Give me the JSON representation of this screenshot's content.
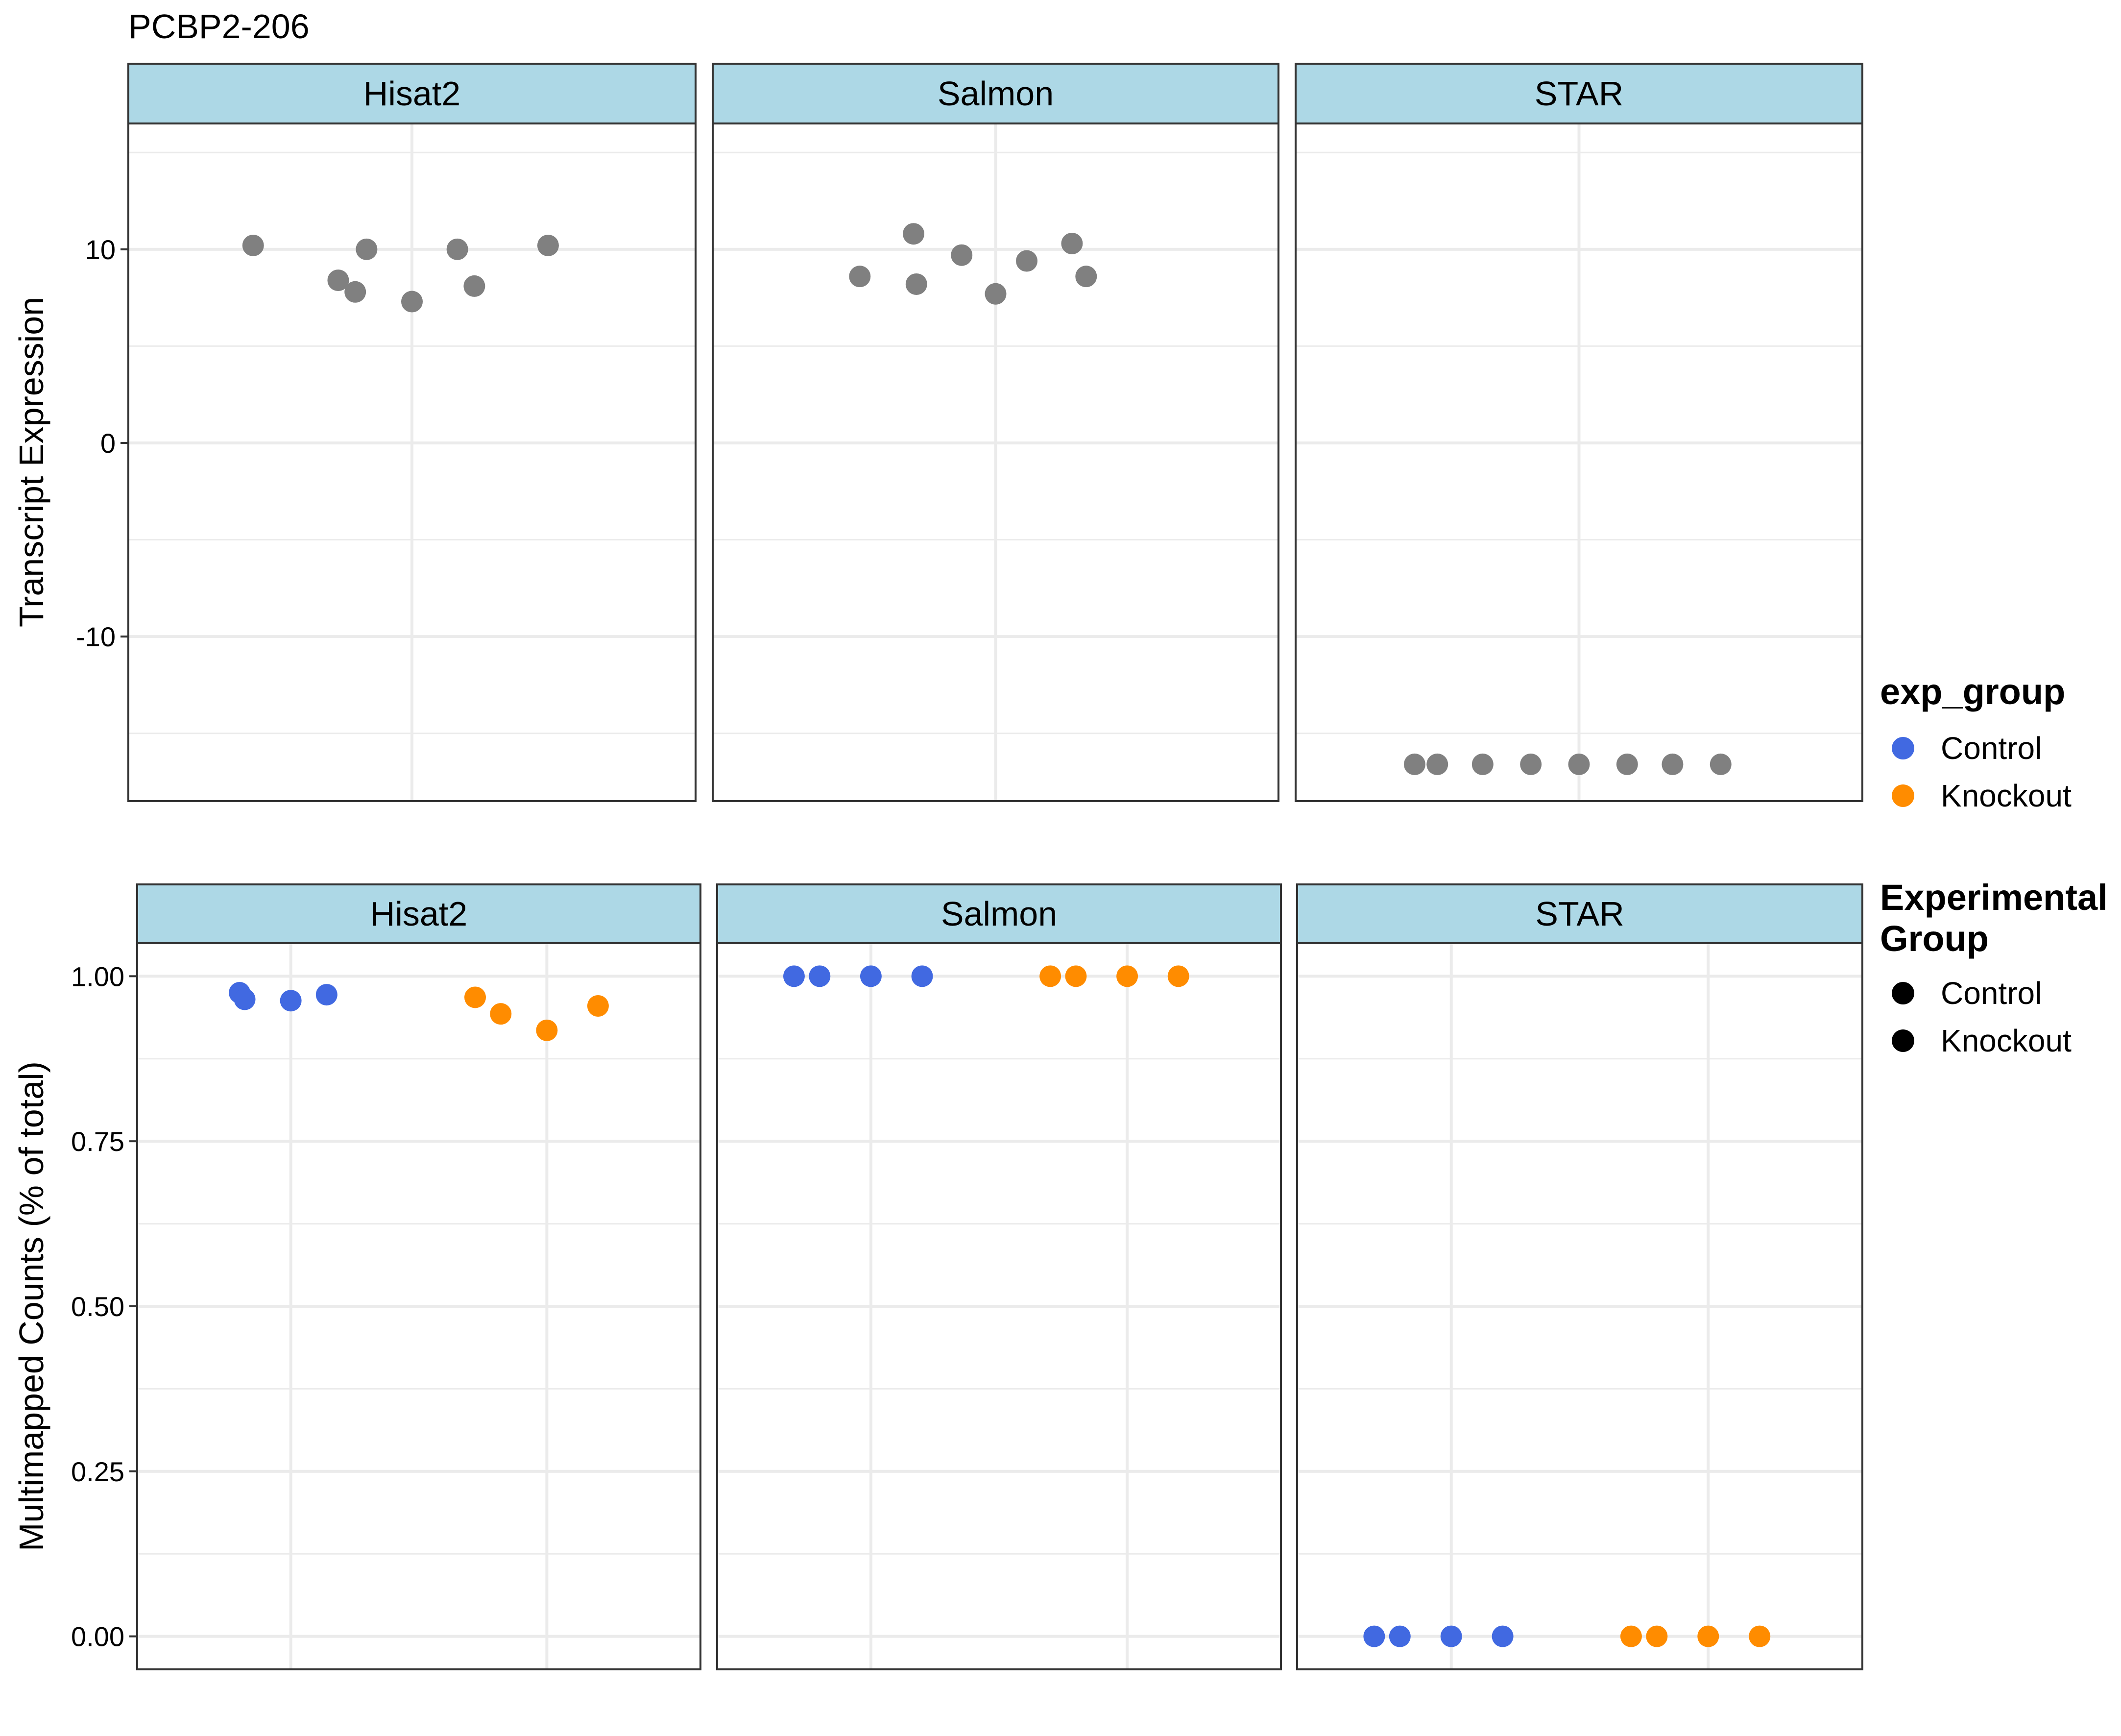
{
  "title": "PCBP2-206",
  "colors": {
    "control": "#4169E1",
    "knockout": "#FF8C00",
    "neutral": "#808080",
    "strip": "#ADD8E6",
    "grid": "#EBEBEB"
  },
  "chart_data": [
    {
      "type": "scatter",
      "ylabel": "Transcript Expression",
      "ylim": [
        -18.5,
        16.5
      ],
      "ytick_values": [
        -10,
        0,
        10
      ],
      "ytick_labels": [
        "-10",
        "0",
        "10"
      ],
      "xlim": [
        -1,
        1
      ],
      "grid": true,
      "facets": [
        {
          "label": "Hisat2",
          "points": [
            {
              "x": -0.56,
              "y": 10.2
            },
            {
              "x": -0.26,
              "y": 8.4
            },
            {
              "x": -0.2,
              "y": 7.8
            },
            {
              "x": -0.16,
              "y": 10.0
            },
            {
              "x": 0.0,
              "y": 7.3
            },
            {
              "x": 0.16,
              "y": 10.0
            },
            {
              "x": 0.22,
              "y": 8.1
            },
            {
              "x": 0.48,
              "y": 10.2
            }
          ]
        },
        {
          "label": "Salmon",
          "points": [
            {
              "x": -0.48,
              "y": 8.6
            },
            {
              "x": -0.29,
              "y": 10.8
            },
            {
              "x": -0.28,
              "y": 8.2
            },
            {
              "x": -0.12,
              "y": 9.7
            },
            {
              "x": 0.0,
              "y": 7.7
            },
            {
              "x": 0.11,
              "y": 9.4
            },
            {
              "x": 0.27,
              "y": 10.3
            },
            {
              "x": 0.32,
              "y": 8.6
            }
          ]
        },
        {
          "label": "STAR",
          "points": [
            {
              "x": -0.58,
              "y": -16.6
            },
            {
              "x": -0.5,
              "y": -16.6
            },
            {
              "x": -0.34,
              "y": -16.6
            },
            {
              "x": -0.17,
              "y": -16.6
            },
            {
              "x": 0.0,
              "y": -16.6
            },
            {
              "x": 0.17,
              "y": -16.6
            },
            {
              "x": 0.33,
              "y": -16.6
            },
            {
              "x": 0.5,
              "y": -16.6
            }
          ]
        }
      ]
    },
    {
      "type": "scatter",
      "ylabel": "Multimapped Counts (% of total)",
      "ylim": [
        -0.05,
        1.05
      ],
      "ytick_values": [
        0,
        0.25,
        0.5,
        0.75,
        1.0
      ],
      "ytick_labels": [
        "0.00",
        "0.25",
        "0.50",
        "0.75",
        "1.00"
      ],
      "xlim": [
        0.4,
        2.6
      ],
      "categories": [
        "Control",
        "Knockout"
      ],
      "grid": true,
      "facets": [
        {
          "label": "Hisat2",
          "series": [
            {
              "group": "control",
              "points": [
                {
                  "x": 0.8,
                  "y": 0.975
                },
                {
                  "x": 0.82,
                  "y": 0.965
                },
                {
                  "x": 1.0,
                  "y": 0.963
                },
                {
                  "x": 1.14,
                  "y": 0.972
                }
              ]
            },
            {
              "group": "knockout",
              "points": [
                {
                  "x": 1.72,
                  "y": 0.968
                },
                {
                  "x": 1.82,
                  "y": 0.943
                },
                {
                  "x": 2.0,
                  "y": 0.918
                },
                {
                  "x": 2.2,
                  "y": 0.955
                }
              ]
            }
          ]
        },
        {
          "label": "Salmon",
          "series": [
            {
              "group": "control",
              "points": [
                {
                  "x": 0.7,
                  "y": 1.0
                },
                {
                  "x": 0.8,
                  "y": 1.0
                },
                {
                  "x": 1.0,
                  "y": 1.0
                },
                {
                  "x": 1.2,
                  "y": 1.0
                }
              ]
            },
            {
              "group": "knockout",
              "points": [
                {
                  "x": 1.7,
                  "y": 1.0
                },
                {
                  "x": 1.8,
                  "y": 1.0
                },
                {
                  "x": 2.0,
                  "y": 1.0
                },
                {
                  "x": 2.2,
                  "y": 1.0
                }
              ]
            }
          ]
        },
        {
          "label": "STAR",
          "series": [
            {
              "group": "control",
              "points": [
                {
                  "x": 0.7,
                  "y": 0.0
                },
                {
                  "x": 0.8,
                  "y": 0.0
                },
                {
                  "x": 1.0,
                  "y": 0.0
                },
                {
                  "x": 1.2,
                  "y": 0.0
                }
              ]
            },
            {
              "group": "knockout",
              "points": [
                {
                  "x": 1.7,
                  "y": 0.0
                },
                {
                  "x": 1.8,
                  "y": 0.0
                },
                {
                  "x": 2.0,
                  "y": 0.0
                },
                {
                  "x": 2.2,
                  "y": 0.0
                }
              ]
            }
          ]
        }
      ]
    }
  ],
  "legends": [
    {
      "title": "exp_group",
      "placement": "right",
      "items": [
        {
          "label": "Control",
          "color": "#4169E1"
        },
        {
          "label": "Knockout",
          "color": "#FF8C00"
        }
      ]
    },
    {
      "title_lines": [
        "Experimental",
        "Group"
      ],
      "placement": "right",
      "items": [
        {
          "label": "Control",
          "color": "#000000"
        },
        {
          "label": "Knockout",
          "color": "#000000"
        }
      ]
    }
  ]
}
